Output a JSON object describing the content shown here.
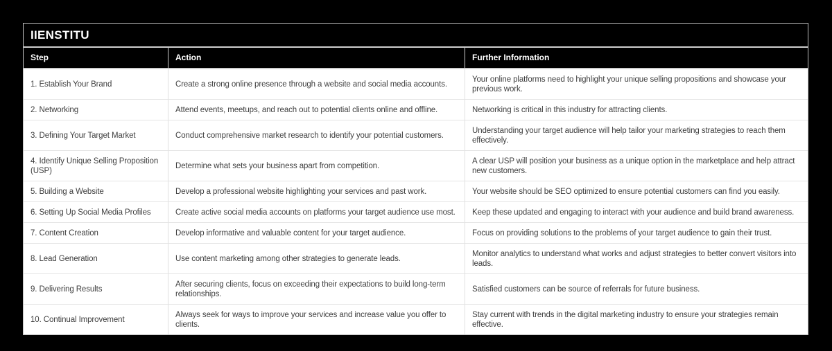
{
  "brand": {
    "title": "IIENSTITU"
  },
  "colors": {
    "page_background": "#000000",
    "band_background": "#000000",
    "band_text": "#ffffff",
    "body_text": "#3e3e3e",
    "outer_border": "#c2c2c2",
    "row_separator": "#e4e4e4"
  },
  "table": {
    "columns": [
      "Step",
      "Action",
      "Further Information"
    ],
    "rows": [
      {
        "step": "1. Establish Your Brand",
        "action": "Create a strong online presence through a website and social media accounts.",
        "info": "Your online platforms need to highlight your unique selling propositions and showcase your previous work."
      },
      {
        "step": "2. Networking",
        "action": "Attend events, meetups, and reach out to potential clients online and offline.",
        "info": "Networking is critical in this industry for attracting clients."
      },
      {
        "step": "3. Defining Your Target Market",
        "action": "Conduct comprehensive market research to identify your potential customers.",
        "info": "Understanding your target audience will help tailor your marketing strategies to reach them effectively."
      },
      {
        "step": "4. Identify Unique Selling Proposition (USP)",
        "action": "Determine what sets your business apart from competition.",
        "info": "A clear USP will position your business as a unique option in the marketplace and help attract new customers."
      },
      {
        "step": "5. Building a Website",
        "action": "Develop a professional website highlighting your services and past work.",
        "info": "Your website should be SEO optimized to ensure potential customers can find you easily."
      },
      {
        "step": "6. Setting Up Social Media Profiles",
        "action": "Create active social media accounts on platforms your target audience use most.",
        "info": "Keep these updated and engaging to interact with your audience and build brand awareness."
      },
      {
        "step": "7. Content Creation",
        "action": "Develop informative and valuable content for your target audience.",
        "info": "Focus on providing solutions to the problems of your target audience to gain their trust."
      },
      {
        "step": "8. Lead Generation",
        "action": "Use content marketing among other strategies to generate leads.",
        "info": "Monitor analytics to understand what works and adjust strategies to better convert visitors into leads."
      },
      {
        "step": "9. Delivering Results",
        "action": "After securing clients, focus on exceeding their expectations to build long-term relationships.",
        "info": "Satisfied customers can be source of referrals for future business."
      },
      {
        "step": "10. Continual Improvement",
        "action": "Always seek for ways to improve your services and increase value you offer to clients.",
        "info": "Stay current with trends in the digital marketing industry to ensure your strategies remain effective."
      }
    ]
  }
}
